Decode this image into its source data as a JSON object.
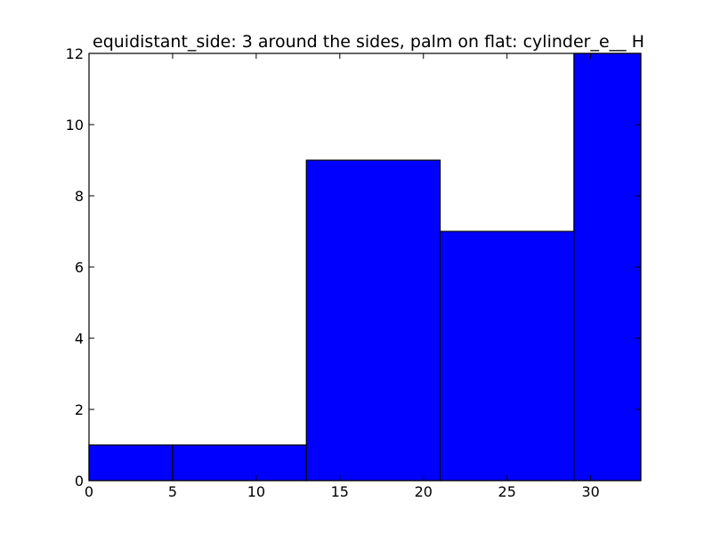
{
  "chart_data": {
    "type": "bar",
    "title": "equidistant_side: 3 around the sides, palm on flat: cylinder_e__ H",
    "xlabel": "",
    "ylabel": "",
    "bins": [
      {
        "start": 0,
        "end": 5,
        "value": 1
      },
      {
        "start": 5,
        "end": 13,
        "value": 1
      },
      {
        "start": 13,
        "end": 21,
        "value": 9
      },
      {
        "start": 21,
        "end": 29,
        "value": 7
      },
      {
        "start": 29,
        "end": 33,
        "value": 12
      }
    ],
    "xlim": [
      0,
      33
    ],
    "ylim": [
      0,
      12
    ],
    "xticks": [
      0,
      5,
      10,
      15,
      20,
      25,
      30
    ],
    "yticks": [
      0,
      2,
      4,
      6,
      8,
      10,
      12
    ],
    "bar_color": "#0000ff",
    "edge_color": "#000000",
    "grid": false,
    "legend": "none"
  }
}
